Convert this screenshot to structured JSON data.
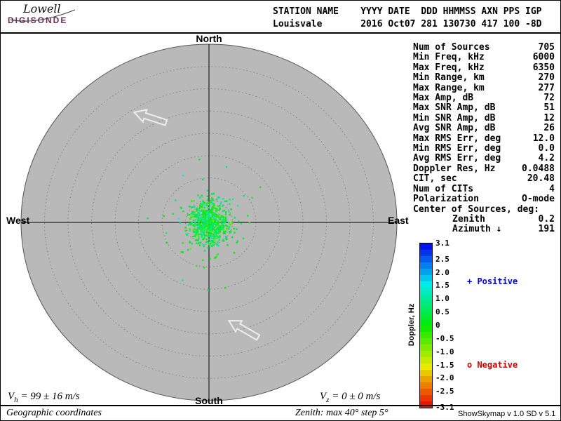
{
  "header": {
    "logo_line1": "Lowell",
    "logo_line2": "DIGISONDE",
    "row1": "STATION NAME    YYYY DATE  DDD HHMMSS AXN PPS IGP",
    "row2": "Louisvale       2016 Oct07 281 130730 417 100 -8D"
  },
  "compass": {
    "north": "North",
    "south": "South",
    "east": "East",
    "west": "West"
  },
  "stats": {
    "rows": [
      {
        "label": "Num of Sources",
        "value": "705"
      },
      {
        "label": "Min Freq, kHz",
        "value": "6000"
      },
      {
        "label": "Max Freq, kHz",
        "value": "6350"
      },
      {
        "label": "Min Range, km",
        "value": "270"
      },
      {
        "label": "Max Range, km",
        "value": "277"
      },
      {
        "label": "Max Amp, dB",
        "value": "72"
      },
      {
        "label": "Max SNR Amp, dB",
        "value": "51"
      },
      {
        "label": "Min SNR Amp, dB",
        "value": "12"
      },
      {
        "label": "Avg SNR Amp, dB",
        "value": "26"
      },
      {
        "label": "Max RMS Err, deg",
        "value": "12.0"
      },
      {
        "label": "Min RMS Err, deg",
        "value": "0.0"
      },
      {
        "label": "Avg RMS Err, deg",
        "value": "4.2"
      },
      {
        "label": "Doppler Res, Hz",
        "value": "0.0488"
      },
      {
        "label": "CIT, sec",
        "value": "20.48"
      },
      {
        "label": "Num of CITs",
        "value": "4"
      },
      {
        "label": "Polarization",
        "value": "O-mode"
      }
    ],
    "center_header": "Center of Sources, deg:",
    "center_rows": [
      {
        "label": "Zenith",
        "value": "0.2"
      },
      {
        "label": "Azimuth ↓",
        "value": "191"
      }
    ]
  },
  "legend": {
    "positive": "+ Positive",
    "negative": "o Negative",
    "positive_color": "#0000dd",
    "negative_color": "#cc0000"
  },
  "colorbar": {
    "label": "Doppler, Hz",
    "max": 3.1,
    "min": -3.1,
    "ticks": [
      "3.1",
      "2.5",
      "2.0",
      "1.5",
      "1.0",
      "0.5",
      "0",
      "-0.5",
      "-1.0",
      "-1.5",
      "-2.0",
      "-2.5",
      "-3.1"
    ]
  },
  "velocities": {
    "vh_symbol": "V",
    "vh_sub": "h",
    "vh_value": " = 99 ± 16 m/s",
    "vz_symbol": "V",
    "vz_sub": "z",
    "vz_value": " = 0 ± 0 m/s"
  },
  "footer": {
    "left": "Geographic coordinates",
    "center": "Zenith: max 40°  step 5°",
    "right": "ShowSkymap v 1.0  SD v 5.1"
  },
  "chart_data": {
    "type": "scatter",
    "projection": "polar-zenith",
    "coordinates": "Geographic",
    "zenith_max_deg": 40,
    "zenith_step_deg": 5,
    "num_sources": 705,
    "cluster": {
      "center_zenith_deg": 0.2,
      "center_azimuth_deg": 191,
      "spread_deg": 2.2,
      "outlier_fraction": 0.12,
      "outlier_spread_factor": 2.3,
      "doppler_mean_hz": 0.35,
      "doppler_sd_hz": 0.5
    },
    "colorbar": {
      "label": "Doppler, Hz",
      "min": -3.1,
      "max": 3.1
    },
    "background_color": "#b9b9b9",
    "velocity_horizontal": {
      "value": 99,
      "error": 16,
      "units": "m/s"
    },
    "velocity_vertical": {
      "value": 0,
      "error": 0,
      "units": "m/s"
    }
  }
}
